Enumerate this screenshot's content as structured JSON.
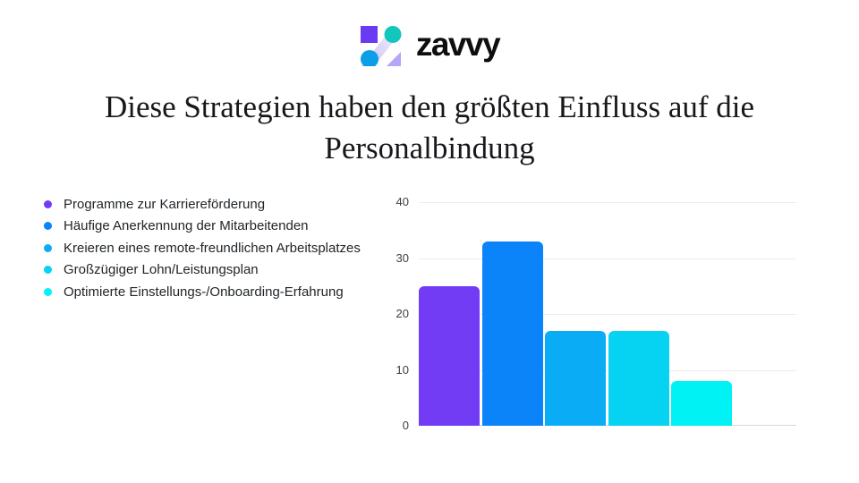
{
  "brand": {
    "wordmark": "zavvy",
    "logo_colors": {
      "square": "#6a3bf3",
      "circle_teal": "#13c6bc",
      "circle_blue": "#0c9fe8",
      "band_light": "#f0edfd",
      "band_mid": "#cdc0f8",
      "triangle": "#b7a5f5"
    }
  },
  "title": {
    "line1": "Diese Strategien haben den größten Einfluss auf die",
    "line2": "Personalbindung"
  },
  "chart_data": {
    "type": "bar",
    "title": "Diese Strategien haben den größten Einfluss auf die Personalbindung",
    "categories": [
      "Programme zur Karriereförderung",
      "Häufige Anerkennung der Mitarbeitenden",
      "Kreieren eines remote-freundlichen Arbeitsplatzes",
      "Großzügiger Lohn/Leistungsplan",
      "Optimierte Einstellungs-/Onboarding-Erfahrung"
    ],
    "values": [
      25,
      33,
      17,
      17,
      8
    ],
    "colors": [
      "#713cf4",
      "#0b84fa",
      "#0aacf5",
      "#06d2f1",
      "#00f2f4"
    ],
    "xlabel": "",
    "ylabel": "",
    "ylim": [
      0,
      40
    ],
    "yticks": [
      0,
      10,
      20,
      30,
      40
    ],
    "grid": true,
    "legend_position": "left",
    "axis": {
      "tick_label_color": "#3c4043",
      "grid_color": "#ececee",
      "baseline_color": "#d9dadc"
    }
  }
}
